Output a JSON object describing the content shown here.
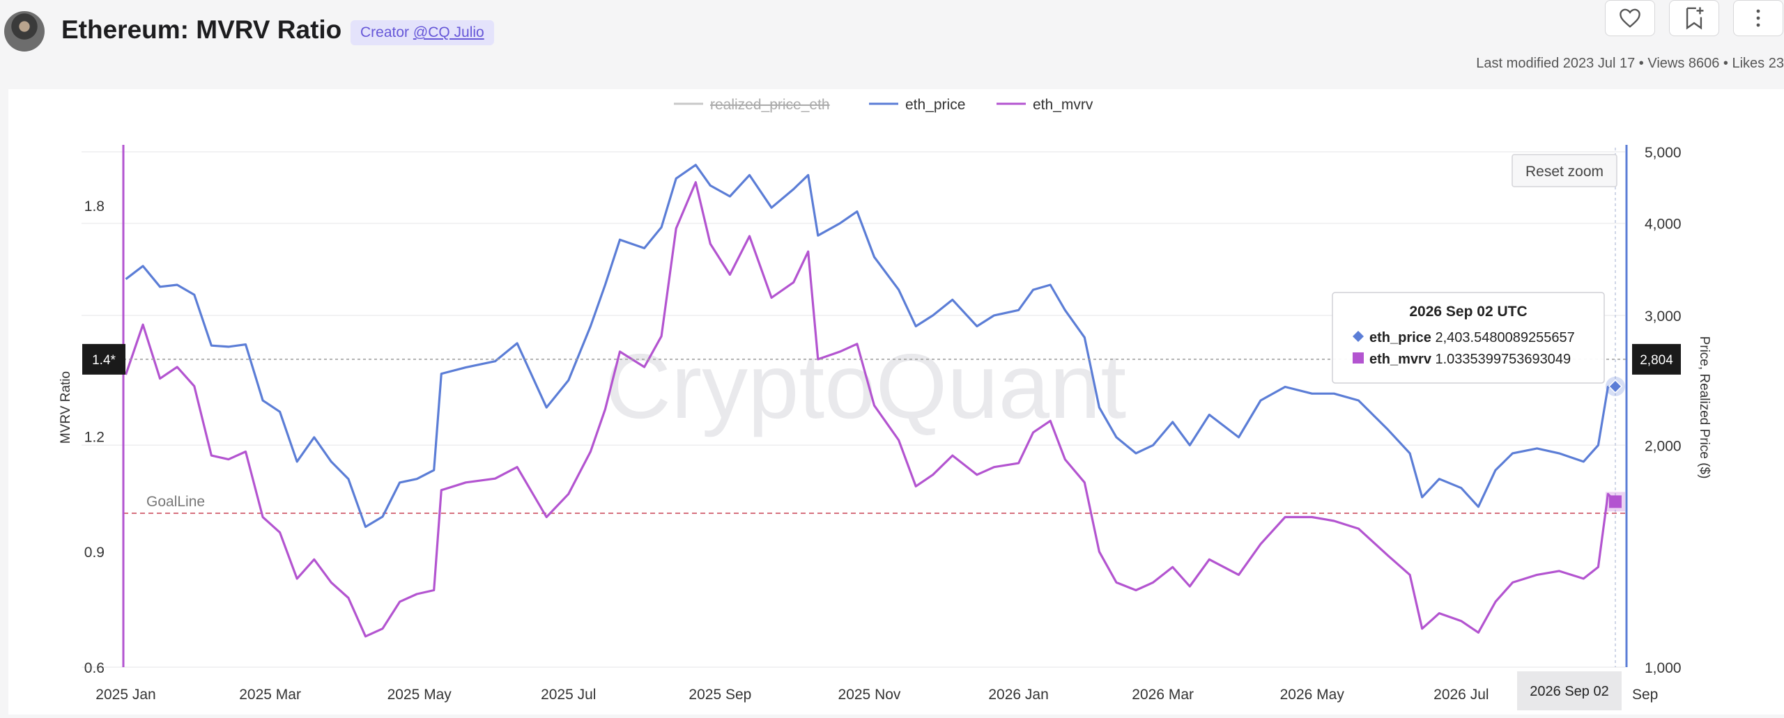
{
  "header": {
    "title": "Ethereum: MVRV Ratio",
    "creator_label": "Creator",
    "creator_handle": "@CQ Julio",
    "meta": "Last modified 2023 Jul 17 • Views 8606 • Likes 23"
  },
  "icons": {
    "like": "heart-icon",
    "bookmark": "bookmark-add-icon",
    "more": "more-vertical-icon"
  },
  "chart_data": {
    "type": "line",
    "watermark": "CryptoQuant",
    "legend": [
      {
        "name": "realized_price_eth",
        "color": "#c8c8c8",
        "hidden": true
      },
      {
        "name": "eth_price",
        "color": "#5b7dd6"
      },
      {
        "name": "eth_mvrv",
        "color": "#b354d0"
      }
    ],
    "reset_zoom": "Reset zoom",
    "y_left": {
      "label": "MVRV Ratio",
      "ticks": [
        "0.6",
        "0.9",
        "1.2",
        "1.8"
      ],
      "range": [
        0.6,
        1.95
      ]
    },
    "y_right": {
      "label": "Price, Realized Price ($)",
      "scale": "log",
      "ticks": [
        "1,000",
        "2,000",
        "3,000",
        "4,000",
        "5,000"
      ],
      "range": [
        1000,
        5000
      ]
    },
    "x_ticks": [
      "2025 Jan",
      "2025 Mar",
      "2025 May",
      "2025 Jul",
      "2025 Sep",
      "2025 Nov",
      "2026 Jan",
      "2026 Mar",
      "2026 May",
      "2026 Jul",
      "Sep"
    ],
    "x_range": [
      "2024-12-31",
      "2026-09-06"
    ],
    "goal_line": {
      "label": "GoalLine",
      "value": 1.0
    },
    "crosshair": {
      "left_value": "1.4*",
      "right_value": "2,804",
      "x_label": "2026 Sep 02",
      "left_y": 1.4,
      "right_y": 2804
    },
    "tooltip": {
      "title": "2026 Sep 02 UTC",
      "rows": [
        {
          "name": "eth_price",
          "value": "2,403.5480089255657",
          "marker": "diamond",
          "color": "#5b7dd6"
        },
        {
          "name": "eth_mvrv",
          "value": "1.0335399753693049",
          "marker": "square",
          "color": "#b354d0"
        }
      ]
    },
    "series": [
      {
        "name": "eth_price",
        "axis": "right",
        "color": "#5b7dd6",
        "points": [
          [
            "2025-01-01",
            3360
          ],
          [
            "2025-01-08",
            3500
          ],
          [
            "2025-01-15",
            3280
          ],
          [
            "2025-01-22",
            3300
          ],
          [
            "2025-01-29",
            3200
          ],
          [
            "2025-02-05",
            2730
          ],
          [
            "2025-02-12",
            2720
          ],
          [
            "2025-02-19",
            2740
          ],
          [
            "2025-02-26",
            2300
          ],
          [
            "2025-03-05",
            2220
          ],
          [
            "2025-03-12",
            1900
          ],
          [
            "2025-03-19",
            2050
          ],
          [
            "2025-03-26",
            1900
          ],
          [
            "2025-04-02",
            1800
          ],
          [
            "2025-04-09",
            1550
          ],
          [
            "2025-04-16",
            1600
          ],
          [
            "2025-04-23",
            1780
          ],
          [
            "2025-04-30",
            1800
          ],
          [
            "2025-05-07",
            1850
          ],
          [
            "2025-05-10",
            2500
          ],
          [
            "2025-05-20",
            2550
          ],
          [
            "2025-06-01",
            2600
          ],
          [
            "2025-06-10",
            2750
          ],
          [
            "2025-06-22",
            2250
          ],
          [
            "2025-07-01",
            2450
          ],
          [
            "2025-07-10",
            2900
          ],
          [
            "2025-07-16",
            3300
          ],
          [
            "2025-07-22",
            3800
          ],
          [
            "2025-08-01",
            3700
          ],
          [
            "2025-08-08",
            3950
          ],
          [
            "2025-08-14",
            4600
          ],
          [
            "2025-08-22",
            4800
          ],
          [
            "2025-08-28",
            4500
          ],
          [
            "2025-09-05",
            4350
          ],
          [
            "2025-09-13",
            4650
          ],
          [
            "2025-09-22",
            4200
          ],
          [
            "2025-10-01",
            4450
          ],
          [
            "2025-10-07",
            4650
          ],
          [
            "2025-10-11",
            3850
          ],
          [
            "2025-10-20",
            4000
          ],
          [
            "2025-10-27",
            4150
          ],
          [
            "2025-11-03",
            3600
          ],
          [
            "2025-11-13",
            3250
          ],
          [
            "2025-11-20",
            2900
          ],
          [
            "2025-11-27",
            3000
          ],
          [
            "2025-12-05",
            3150
          ],
          [
            "2025-12-15",
            2900
          ],
          [
            "2025-12-22",
            3000
          ],
          [
            "2026-01-01",
            3050
          ],
          [
            "2026-01-07",
            3250
          ],
          [
            "2026-01-14",
            3300
          ],
          [
            "2026-01-20",
            3050
          ],
          [
            "2026-01-28",
            2800
          ],
          [
            "2026-02-03",
            2250
          ],
          [
            "2026-02-10",
            2050
          ],
          [
            "2026-02-18",
            1950
          ],
          [
            "2026-02-25",
            2000
          ],
          [
            "2026-03-05",
            2150
          ],
          [
            "2026-03-12",
            2000
          ],
          [
            "2026-03-20",
            2200
          ],
          [
            "2026-04-01",
            2050
          ],
          [
            "2026-04-10",
            2300
          ],
          [
            "2026-04-20",
            2400
          ],
          [
            "2026-05-01",
            2350
          ],
          [
            "2026-05-10",
            2350
          ],
          [
            "2026-05-20",
            2300
          ],
          [
            "2026-06-01",
            2100
          ],
          [
            "2026-06-10",
            1950
          ],
          [
            "2026-06-15",
            1700
          ],
          [
            "2026-06-22",
            1800
          ],
          [
            "2026-07-01",
            1750
          ],
          [
            "2026-07-08",
            1650
          ],
          [
            "2026-07-15",
            1850
          ],
          [
            "2026-07-22",
            1950
          ],
          [
            "2026-08-01",
            1980
          ],
          [
            "2026-08-10",
            1950
          ],
          [
            "2026-08-20",
            1900
          ],
          [
            "2026-08-26",
            2000
          ],
          [
            "2026-08-30",
            2400
          ],
          [
            "2026-09-02",
            2403
          ]
        ]
      },
      {
        "name": "eth_mvrv",
        "axis": "left",
        "color": "#b354d0",
        "points": [
          [
            "2025-01-01",
            1.36
          ],
          [
            "2025-01-08",
            1.49
          ],
          [
            "2025-01-15",
            1.35
          ],
          [
            "2025-01-22",
            1.38
          ],
          [
            "2025-01-29",
            1.33
          ],
          [
            "2025-02-05",
            1.15
          ],
          [
            "2025-02-12",
            1.14
          ],
          [
            "2025-02-19",
            1.16
          ],
          [
            "2025-02-26",
            0.99
          ],
          [
            "2025-03-05",
            0.95
          ],
          [
            "2025-03-12",
            0.83
          ],
          [
            "2025-03-19",
            0.88
          ],
          [
            "2025-03-26",
            0.82
          ],
          [
            "2025-04-02",
            0.78
          ],
          [
            "2025-04-09",
            0.68
          ],
          [
            "2025-04-16",
            0.7
          ],
          [
            "2025-04-23",
            0.77
          ],
          [
            "2025-04-30",
            0.79
          ],
          [
            "2025-05-07",
            0.8
          ],
          [
            "2025-05-10",
            1.06
          ],
          [
            "2025-05-20",
            1.08
          ],
          [
            "2025-06-01",
            1.09
          ],
          [
            "2025-06-10",
            1.12
          ],
          [
            "2025-06-22",
            0.99
          ],
          [
            "2025-07-01",
            1.05
          ],
          [
            "2025-07-10",
            1.16
          ],
          [
            "2025-07-16",
            1.27
          ],
          [
            "2025-07-22",
            1.42
          ],
          [
            "2025-08-01",
            1.38
          ],
          [
            "2025-08-08",
            1.46
          ],
          [
            "2025-08-14",
            1.74
          ],
          [
            "2025-08-22",
            1.86
          ],
          [
            "2025-08-28",
            1.7
          ],
          [
            "2025-09-05",
            1.62
          ],
          [
            "2025-09-13",
            1.72
          ],
          [
            "2025-09-22",
            1.56
          ],
          [
            "2025-10-01",
            1.6
          ],
          [
            "2025-10-07",
            1.68
          ],
          [
            "2025-10-11",
            1.4
          ],
          [
            "2025-10-20",
            1.42
          ],
          [
            "2025-10-27",
            1.44
          ],
          [
            "2025-11-03",
            1.28
          ],
          [
            "2025-11-13",
            1.19
          ],
          [
            "2025-11-20",
            1.07
          ],
          [
            "2025-11-27",
            1.1
          ],
          [
            "2025-12-05",
            1.15
          ],
          [
            "2025-12-15",
            1.1
          ],
          [
            "2025-12-22",
            1.12
          ],
          [
            "2026-01-01",
            1.13
          ],
          [
            "2026-01-07",
            1.21
          ],
          [
            "2026-01-14",
            1.24
          ],
          [
            "2026-01-20",
            1.14
          ],
          [
            "2026-01-28",
            1.08
          ],
          [
            "2026-02-03",
            0.9
          ],
          [
            "2026-02-10",
            0.82
          ],
          [
            "2026-02-18",
            0.8
          ],
          [
            "2026-02-25",
            0.82
          ],
          [
            "2026-03-05",
            0.86
          ],
          [
            "2026-03-12",
            0.81
          ],
          [
            "2026-03-20",
            0.88
          ],
          [
            "2026-04-01",
            0.84
          ],
          [
            "2026-04-10",
            0.92
          ],
          [
            "2026-04-20",
            0.99
          ],
          [
            "2026-05-01",
            0.99
          ],
          [
            "2026-05-10",
            0.98
          ],
          [
            "2026-05-20",
            0.96
          ],
          [
            "2026-06-01",
            0.89
          ],
          [
            "2026-06-10",
            0.84
          ],
          [
            "2026-06-15",
            0.7
          ],
          [
            "2026-06-22",
            0.74
          ],
          [
            "2026-07-01",
            0.72
          ],
          [
            "2026-07-08",
            0.69
          ],
          [
            "2026-07-15",
            0.77
          ],
          [
            "2026-07-22",
            0.82
          ],
          [
            "2026-08-01",
            0.84
          ],
          [
            "2026-08-10",
            0.85
          ],
          [
            "2026-08-20",
            0.83
          ],
          [
            "2026-08-26",
            0.86
          ],
          [
            "2026-08-30",
            1.05
          ],
          [
            "2026-09-02",
            1.03
          ]
        ]
      }
    ]
  }
}
